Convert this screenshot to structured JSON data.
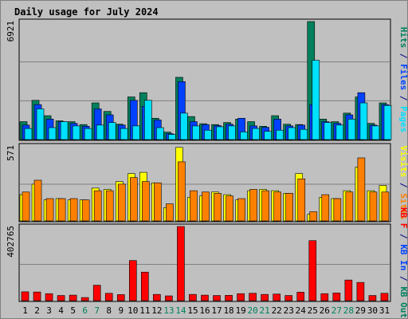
{
  "colors": {
    "hits": "#00805c",
    "files": "#0040ff",
    "pages": "#00e0ff",
    "visits": "#ffff00",
    "sites": "#ff8000",
    "kbytes": "#ff0000",
    "title": "#0000c0",
    "weekend": "#00805c",
    "weekday": "#000080"
  },
  "chart_data": {
    "type": "bar",
    "title": "Daily usage for July 2024",
    "days": [
      "1",
      "2",
      "3",
      "4",
      "5",
      "6",
      "7",
      "8",
      "9",
      "10",
      "11",
      "12",
      "13",
      "14",
      "15",
      "16",
      "17",
      "18",
      "19",
      "20",
      "21",
      "22",
      "23",
      "24",
      "25",
      "26",
      "27",
      "28",
      "29",
      "30",
      "31"
    ],
    "weekend_days": [
      "6",
      "7",
      "13",
      "14",
      "20",
      "21",
      "27",
      "28"
    ],
    "panels": [
      {
        "id": "top",
        "max_label": "6921",
        "ylim": [
          0,
          6921
        ],
        "series": [
          {
            "name": "Hits",
            "color_key": "hits",
            "values": [
              1050,
              2300,
              1400,
              1100,
              1050,
              880,
              2150,
              1650,
              900,
              2500,
              2750,
              1250,
              440,
              3650,
              1350,
              930,
              880,
              1000,
              1200,
              1050,
              780,
              1400,
              900,
              880,
              6921,
              1200,
              1050,
              1550,
              2500,
              950,
              2150
            ]
          },
          {
            "name": "Files",
            "color_key": "files",
            "values": [
              850,
              2050,
              1200,
              1050,
              950,
              780,
              1800,
              1450,
              850,
              2300,
              1950,
              1150,
              350,
              3400,
              1050,
              880,
              820,
              900,
              1250,
              800,
              720,
              1200,
              800,
              850,
              2050,
              1050,
              950,
              1450,
              2750,
              850,
              2050
            ]
          },
          {
            "name": "Pages",
            "color_key": "pages",
            "values": [
              650,
              1800,
              700,
              1050,
              800,
              650,
              850,
              1000,
              650,
              800,
              2300,
              700,
              300,
              1550,
              800,
              550,
              750,
              800,
              450,
              650,
              480,
              550,
              700,
              600,
              4650,
              1000,
              850,
              1200,
              2150,
              800,
              2000
            ]
          }
        ],
        "side_label": [
          {
            "text": "Hits",
            "color_key": "hits"
          },
          {
            "text": " / ",
            "color_key": "weekday"
          },
          {
            "text": "Files",
            "color_key": "files"
          },
          {
            "text": " / ",
            "color_key": "weekday"
          },
          {
            "text": "Pages",
            "color_key": "pages"
          }
        ]
      },
      {
        "id": "middle",
        "max_label": "571",
        "ylim": [
          0,
          571
        ],
        "series": [
          {
            "name": "Visits",
            "color_key": "visits",
            "values": [
              200,
              280,
              160,
              170,
              160,
              160,
              250,
              240,
              300,
              360,
              370,
              290,
              100,
              560,
              180,
              190,
              220,
              200,
              160,
              230,
              240,
              230,
              210,
              360,
              50,
              180,
              170,
              230,
              410,
              230,
              270
            ]
          },
          {
            "name": "Sites",
            "color_key": "sites",
            "values": [
              220,
              310,
              170,
              170,
              170,
              160,
              230,
              230,
              280,
              330,
              300,
              290,
              130,
              450,
              230,
              220,
              210,
              190,
              170,
              240,
              230,
              220,
              210,
              320,
              70,
              200,
              170,
              220,
              480,
              220,
              220
            ]
          }
        ],
        "side_label": [
          {
            "text": "Visits",
            "color_key": "visits"
          },
          {
            "text": " / ",
            "color_key": "weekday"
          },
          {
            "text": "Sites",
            "color_key": "sites"
          }
        ]
      },
      {
        "id": "bottom",
        "max_label": "402765",
        "ylim": [
          0,
          402765
        ],
        "series": [
          {
            "name": "KBytes",
            "color_key": "kbytes",
            "values": [
              48000,
              47000,
              38000,
              28000,
              30000,
              17000,
              84000,
              40000,
              33000,
              218000,
              155000,
              34000,
              26000,
              402765,
              34000,
              30000,
              28000,
              29000,
              38000,
              40000,
              34000,
              36000,
              28000,
              46000,
              326000,
              38000,
              42000,
              112000,
              99000,
              28000,
              40000
            ]
          }
        ],
        "side_label": [
          {
            "text": "KB F",
            "color_key": "kbytes"
          },
          {
            "text": " / ",
            "color_key": "weekday"
          },
          {
            "text": "KB In",
            "color_key": "files"
          },
          {
            "text": " / ",
            "color_key": "weekday"
          },
          {
            "text": "KB Out",
            "color_key": "hits"
          }
        ]
      }
    ]
  }
}
